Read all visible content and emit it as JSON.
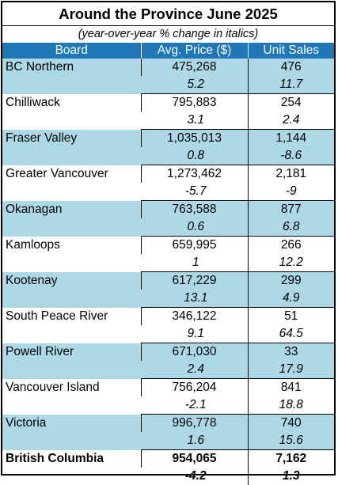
{
  "title": "Around the Province June 2025",
  "subtitle": "(year-over-year % change in italics)",
  "headers": [
    "Board",
    "Avg. Price ($)",
    "Unit Sales"
  ],
  "colors": {
    "header_bg": "#1f77b8",
    "shade_bg": "#add8e6"
  },
  "rows": [
    {
      "board": "BC Northern",
      "price": "475,268",
      "price_pct": "5.2",
      "sales": "476",
      "sales_pct": "11.7"
    },
    {
      "board": "Chilliwack",
      "price": "795,883",
      "price_pct": "3.1",
      "sales": "254",
      "sales_pct": "2.4"
    },
    {
      "board": "Fraser Valley",
      "price": "1,035,013",
      "price_pct": "0.8",
      "sales": "1,144",
      "sales_pct": "-8.6"
    },
    {
      "board": "Greater Vancouver",
      "price": "1,273,462",
      "price_pct": "-5.7",
      "sales": "2,181",
      "sales_pct": "-9"
    },
    {
      "board": "Okanagan",
      "price": "763,588",
      "price_pct": "0.6",
      "sales": "877",
      "sales_pct": "6.8"
    },
    {
      "board": "Kamloops",
      "price": "659,995",
      "price_pct": "1",
      "sales": "266",
      "sales_pct": "12.2"
    },
    {
      "board": "Kootenay",
      "price": "617,229",
      "price_pct": "13.1",
      "sales": "299",
      "sales_pct": "4.9"
    },
    {
      "board": "South Peace River",
      "price": "346,122",
      "price_pct": "9.1",
      "sales": "51",
      "sales_pct": "64.5"
    },
    {
      "board": "Powell River",
      "price": "671,030",
      "price_pct": "2.4",
      "sales": "33",
      "sales_pct": "17.9"
    },
    {
      "board": "Vancouver Island",
      "price": "756,204",
      "price_pct": "-2.1",
      "sales": "841",
      "sales_pct": "18.8"
    },
    {
      "board": "Victoria",
      "price": "996,778",
      "price_pct": "1.6",
      "sales": "740",
      "sales_pct": "15.6"
    }
  ],
  "total": {
    "board": "British Columbia",
    "price": "954,065",
    "price_pct": "-4.2",
    "sales": "7,162",
    "sales_pct": "1.3"
  }
}
